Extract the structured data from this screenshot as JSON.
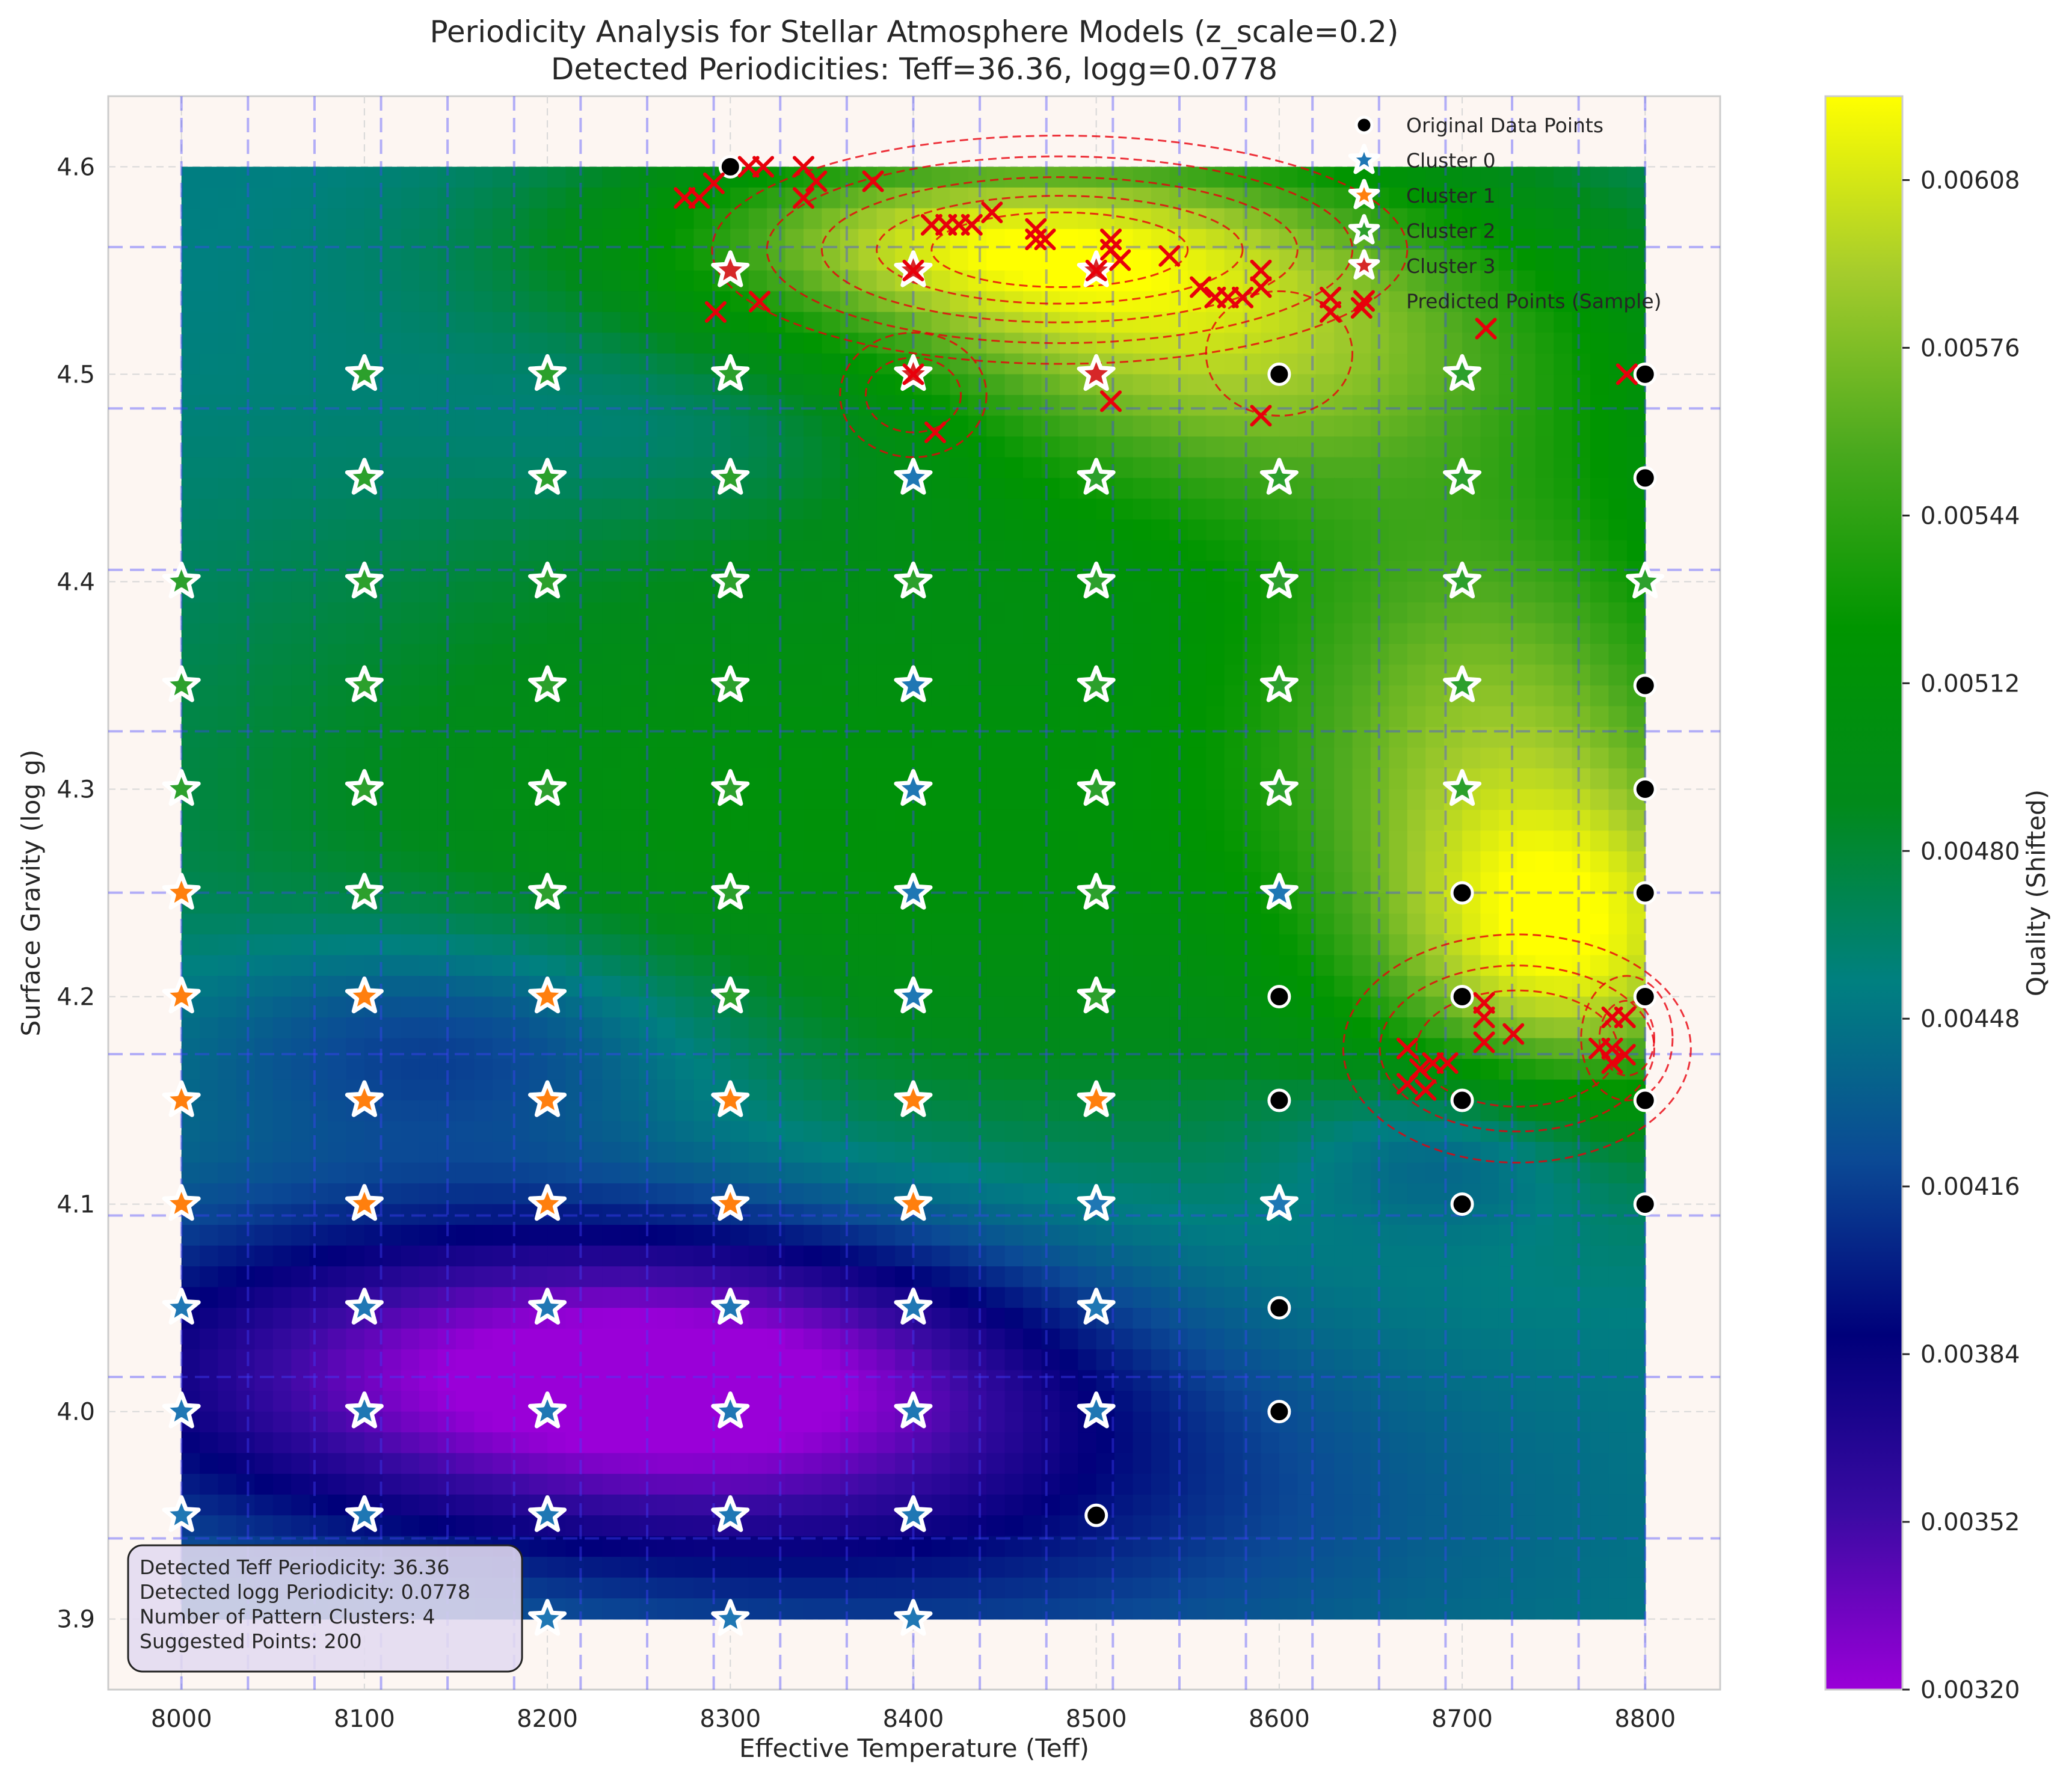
{
  "chart_data": {
    "type": "heatmap",
    "title": "Periodicity Analysis for Stellar Atmosphere Models (z_scale=0.2)",
    "subtitle": "Detected Periodicities: Teff=36.36, logg=0.0778",
    "xlabel": "Effective Temperature (Teff)",
    "ylabel": "Surface Gravity (log g)",
    "xlim": [
      7960,
      8841
    ],
    "ylim": [
      3.866,
      4.634
    ],
    "xticks": [
      "8000",
      "8100",
      "8200",
      "8300",
      "8400",
      "8500",
      "8600",
      "8700",
      "8800"
    ],
    "xtick_values": [
      8000,
      8100,
      8200,
      8300,
      8400,
      8500,
      8600,
      8700,
      8800
    ],
    "yticks": [
      "3.9",
      "4.0",
      "4.1",
      "4.2",
      "4.3",
      "4.4",
      "4.5",
      "4.6"
    ],
    "ytick_values": [
      3.9,
      4.0,
      4.1,
      4.2,
      4.3,
      4.4,
      4.5,
      4.6
    ],
    "grid": true,
    "colorbar": {
      "label": "Quality (Shifted)",
      "range": [
        0.0032,
        0.00624
      ],
      "ticks": [
        "0.00320",
        "0.00352",
        "0.00384",
        "0.00416",
        "0.00448",
        "0.00480",
        "0.00512",
        "0.00544",
        "0.00576",
        "0.00608"
      ],
      "tick_values": [
        0.0032,
        0.00352,
        0.00384,
        0.00416,
        0.00448,
        0.0048,
        0.00512,
        0.00544,
        0.00576,
        0.00608
      ],
      "colormap": [
        "#9a00d8",
        "#3a0aa3",
        "#00007a",
        "#0b4a95",
        "#008080",
        "#018a1b",
        "#009500",
        "#4aa91e",
        "#a5cc2c",
        "#ffff00"
      ]
    },
    "heat_extent": {
      "x": [
        8000,
        8800
      ],
      "y": [
        3.9,
        4.6
      ]
    },
    "heat_blobs": [
      {
        "x": 8540,
        "y": 4.52,
        "sx": 170,
        "sy": 0.06,
        "a": 0.0014
      },
      {
        "x": 8420,
        "y": 4.57,
        "sx": 130,
        "sy": 0.03,
        "a": 0.0008
      },
      {
        "x": 8760,
        "y": 4.22,
        "sx": 80,
        "sy": 0.06,
        "a": 0.0013
      },
      {
        "x": 8720,
        "y": 4.35,
        "sx": 100,
        "sy": 0.08,
        "a": 0.0009
      },
      {
        "x": 8380,
        "y": 4.28,
        "sx": 280,
        "sy": 0.12,
        "a": 0.0006
      },
      {
        "x": 8160,
        "y": 4.02,
        "sx": 180,
        "sy": 0.06,
        "a": -0.0011
      },
      {
        "x": 8330,
        "y": 4.02,
        "sx": 130,
        "sy": 0.05,
        "a": -0.0006
      },
      {
        "x": 8150,
        "y": 4.18,
        "sx": 110,
        "sy": 0.04,
        "a": -0.0006
      },
      {
        "x": 8340,
        "y": 4.48,
        "sx": 120,
        "sy": 0.035,
        "a": -0.0004
      },
      {
        "x": 8700,
        "y": 4.13,
        "sx": 60,
        "sy": 0.03,
        "a": -0.0005
      },
      {
        "x": 8450,
        "y": 3.95,
        "sx": 180,
        "sy": 0.06,
        "a": -0.0004
      }
    ],
    "heat_base": 0.00452,
    "heat_samples": [
      {
        "x": 8000,
        "y": 4.6,
        "value": 0.00452
      },
      {
        "x": 8550,
        "y": 4.52,
        "value": 0.0059
      },
      {
        "x": 8780,
        "y": 4.22,
        "value": 0.0061
      },
      {
        "x": 8150,
        "y": 4.02,
        "value": 0.0034
      },
      {
        "x": 8800,
        "y": 3.9,
        "value": 0.00452
      }
    ],
    "period_lines": {
      "x": [
        8000,
        8036.36,
        8072.73,
        8109.09,
        8145.45,
        8181.82,
        8218.18,
        8254.55,
        8290.91,
        8327.27,
        8363.64,
        8400,
        8436.36,
        8472.73,
        8509.09,
        8545.45,
        8581.82,
        8618.18,
        8654.55,
        8690.91,
        8727.27,
        8763.64,
        8800
      ],
      "y": [
        3.9389,
        4.0167,
        4.0945,
        4.1723,
        4.2501,
        4.3279,
        4.4057,
        4.4835,
        4.5613
      ]
    },
    "legend": {
      "position": "top-right",
      "entries": [
        {
          "label": "Original Data Points",
          "marker": "circle",
          "color": "#000000"
        },
        {
          "label": "Cluster 0",
          "marker": "star",
          "color": "#1f77b4"
        },
        {
          "label": "Cluster 1",
          "marker": "star",
          "color": "#ff7f0e"
        },
        {
          "label": "Cluster 2",
          "marker": "star",
          "color": "#2ca02c"
        },
        {
          "label": "Cluster 3",
          "marker": "star",
          "color": "#d62728"
        },
        {
          "label": "Predicted Points (Sample)",
          "marker": "x",
          "color": "#e8000b"
        }
      ]
    },
    "series": [
      {
        "name": "Original Data Points",
        "color": "#000000",
        "points": [
          [
            8300,
            4.6
          ],
          [
            8600,
            4.5
          ],
          [
            8800,
            4.5
          ],
          [
            8800,
            4.45
          ],
          [
            8800,
            4.35
          ],
          [
            8800,
            4.3
          ],
          [
            8700,
            4.25
          ],
          [
            8800,
            4.25
          ],
          [
            8600,
            4.2
          ],
          [
            8700,
            4.2
          ],
          [
            8800,
            4.2
          ],
          [
            8600,
            4.15
          ],
          [
            8700,
            4.15
          ],
          [
            8800,
            4.15
          ],
          [
            8700,
            4.1
          ],
          [
            8800,
            4.1
          ],
          [
            8600,
            4.05
          ],
          [
            8600,
            4.0
          ],
          [
            8500,
            3.95
          ]
        ]
      },
      {
        "name": "Cluster 0",
        "color": "#1f77b4",
        "points": [
          [
            8000,
            4.05
          ],
          [
            8100,
            4.05
          ],
          [
            8200,
            4.05
          ],
          [
            8300,
            4.05
          ],
          [
            8400,
            4.05
          ],
          [
            8500,
            4.05
          ],
          [
            8000,
            4.0
          ],
          [
            8100,
            4.0
          ],
          [
            8200,
            4.0
          ],
          [
            8300,
            4.0
          ],
          [
            8400,
            4.0
          ],
          [
            8500,
            4.0
          ],
          [
            8000,
            3.95
          ],
          [
            8100,
            3.95
          ],
          [
            8200,
            3.95
          ],
          [
            8300,
            3.95
          ],
          [
            8400,
            3.95
          ],
          [
            8200,
            3.9
          ],
          [
            8300,
            3.9
          ],
          [
            8400,
            3.9
          ],
          [
            8500,
            4.1
          ],
          [
            8600,
            4.1
          ],
          [
            8600,
            4.25
          ],
          [
            8400,
            4.45
          ],
          [
            8400,
            4.35
          ],
          [
            8400,
            4.3
          ],
          [
            8400,
            4.25
          ],
          [
            8400,
            4.2
          ]
        ]
      },
      {
        "name": "Cluster 1",
        "color": "#ff7f0e",
        "points": [
          [
            8000,
            4.25
          ],
          [
            8000,
            4.2
          ],
          [
            8100,
            4.2
          ],
          [
            8200,
            4.2
          ],
          [
            8000,
            4.15
          ],
          [
            8100,
            4.15
          ],
          [
            8200,
            4.15
          ],
          [
            8300,
            4.15
          ],
          [
            8400,
            4.15
          ],
          [
            8500,
            4.15
          ],
          [
            8000,
            4.1
          ],
          [
            8100,
            4.1
          ],
          [
            8200,
            4.1
          ],
          [
            8300,
            4.1
          ],
          [
            8400,
            4.1
          ]
        ]
      },
      {
        "name": "Cluster 2",
        "color": "#2ca02c",
        "points": [
          [
            8100,
            4.5
          ],
          [
            8200,
            4.5
          ],
          [
            8300,
            4.5
          ],
          [
            8700,
            4.5
          ],
          [
            8100,
            4.45
          ],
          [
            8200,
            4.45
          ],
          [
            8300,
            4.45
          ],
          [
            8500,
            4.45
          ],
          [
            8600,
            4.45
          ],
          [
            8700,
            4.45
          ],
          [
            8000,
            4.4
          ],
          [
            8100,
            4.4
          ],
          [
            8200,
            4.4
          ],
          [
            8300,
            4.4
          ],
          [
            8400,
            4.4
          ],
          [
            8500,
            4.4
          ],
          [
            8600,
            4.4
          ],
          [
            8700,
            4.4
          ],
          [
            8800,
            4.4
          ],
          [
            8000,
            4.35
          ],
          [
            8100,
            4.35
          ],
          [
            8200,
            4.35
          ],
          [
            8300,
            4.35
          ],
          [
            8500,
            4.35
          ],
          [
            8600,
            4.35
          ],
          [
            8700,
            4.35
          ],
          [
            8000,
            4.3
          ],
          [
            8100,
            4.3
          ],
          [
            8200,
            4.3
          ],
          [
            8300,
            4.3
          ],
          [
            8500,
            4.3
          ],
          [
            8600,
            4.3
          ],
          [
            8700,
            4.3
          ],
          [
            8100,
            4.25
          ],
          [
            8200,
            4.25
          ],
          [
            8300,
            4.25
          ],
          [
            8500,
            4.25
          ],
          [
            8300,
            4.2
          ],
          [
            8500,
            4.2
          ]
        ]
      },
      {
        "name": "Cluster 3",
        "color": "#d62728",
        "points": [
          [
            8300,
            4.55
          ],
          [
            8400,
            4.55
          ],
          [
            8500,
            4.55
          ],
          [
            8400,
            4.5
          ],
          [
            8500,
            4.5
          ]
        ]
      },
      {
        "name": "Predicted Points (Sample)",
        "color": "#e8000b",
        "points": [
          [
            8275,
            4.585
          ],
          [
            8283,
            4.585
          ],
          [
            8291,
            4.592
          ],
          [
            8310,
            4.6
          ],
          [
            8318,
            4.6
          ],
          [
            8340,
            4.6
          ],
          [
            8340,
            4.585
          ],
          [
            8347,
            4.593
          ],
          [
            8378,
            4.593
          ],
          [
            8410,
            4.572
          ],
          [
            8418,
            4.572
          ],
          [
            8425,
            4.572
          ],
          [
            8432,
            4.572
          ],
          [
            8443,
            4.578
          ],
          [
            8467,
            4.565
          ],
          [
            8472,
            4.565
          ],
          [
            8467,
            4.57
          ],
          [
            8508,
            4.56
          ],
          [
            8513,
            4.555
          ],
          [
            8540,
            4.557
          ],
          [
            8557,
            4.542
          ],
          [
            8565,
            4.537
          ],
          [
            8572,
            4.537
          ],
          [
            8580,
            4.537
          ],
          [
            8590,
            4.542
          ],
          [
            8590,
            4.55
          ],
          [
            8628,
            4.537
          ],
          [
            8628,
            4.53
          ],
          [
            8645,
            4.532
          ],
          [
            8713,
            4.522
          ],
          [
            8500,
            4.55
          ],
          [
            8508,
            4.565
          ],
          [
            8292,
            4.53
          ],
          [
            8316,
            4.535
          ],
          [
            8400,
            4.55
          ],
          [
            8400,
            4.5
          ],
          [
            8412,
            4.472
          ],
          [
            8508,
            4.487
          ],
          [
            8590,
            4.48
          ],
          [
            8790,
            4.5
          ],
          [
            8670,
            4.175
          ],
          [
            8677,
            4.165
          ],
          [
            8684,
            4.168
          ],
          [
            8692,
            4.168
          ],
          [
            8670,
            4.158
          ],
          [
            8680,
            4.155
          ],
          [
            8712,
            4.178
          ],
          [
            8712,
            4.19
          ],
          [
            8712,
            4.197
          ],
          [
            8728,
            4.182
          ],
          [
            8775,
            4.175
          ],
          [
            8782,
            4.175
          ],
          [
            8782,
            4.19
          ],
          [
            8789,
            4.19
          ],
          [
            8789,
            4.172
          ],
          [
            8782,
            4.168
          ]
        ]
      }
    ],
    "density_contours": [
      {
        "cx": 8480,
        "cy": 4.56,
        "rx": [
          190,
          160,
          130,
          100,
          70
        ],
        "ry": [
          0.055,
          0.045,
          0.035,
          0.026,
          0.018
        ]
      },
      {
        "cx": 8400,
        "cy": 4.49,
        "rx": [
          40,
          26
        ],
        "ry": [
          0.03,
          0.018
        ]
      },
      {
        "cx": 8600,
        "cy": 4.51,
        "rx": [
          40
        ],
        "ry": [
          0.03
        ]
      },
      {
        "cx": 8730,
        "cy": 4.175,
        "rx": [
          95,
          75,
          55
        ],
        "ry": [
          0.055,
          0.04,
          0.028
        ]
      },
      {
        "cx": 8790,
        "cy": 4.18,
        "rx": [
          25,
          15
        ],
        "ry": [
          0.03,
          0.018
        ]
      }
    ],
    "info_box": [
      "Detected Teff Periodicity: 36.36",
      "Detected logg Periodicity: 0.0778",
      "Number of Pattern Clusters: 4",
      "Suggested Points: 200"
    ]
  }
}
